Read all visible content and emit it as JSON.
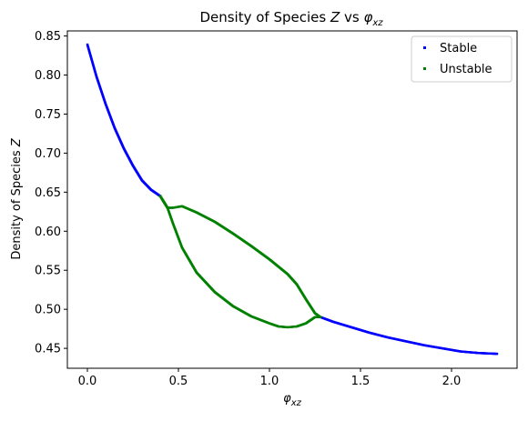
{
  "chart_data": {
    "type": "scatter",
    "title": "Density of Species Z vs φxz",
    "title_parts": {
      "prefix": "Density of Species ",
      "z": "Z",
      "middle": " vs ",
      "phi": "φ",
      "sub": "xz"
    },
    "xlabel_parts": {
      "phi": "φ",
      "sub": "xz"
    },
    "ylabel": "Density of Species Z",
    "ylabel_parts": {
      "prefix": "Density of Species ",
      "z": "Z"
    },
    "xlim": [
      -0.11,
      2.36
    ],
    "ylim": [
      0.4245,
      0.8565
    ],
    "xticks": [
      "0.0",
      "0.5",
      "1.0",
      "1.5",
      "2.0"
    ],
    "xtick_values": [
      0.0,
      0.5,
      1.0,
      1.5,
      2.0
    ],
    "yticks": [
      "0.45",
      "0.50",
      "0.55",
      "0.60",
      "0.65",
      "0.70",
      "0.75",
      "0.80",
      "0.85"
    ],
    "ytick_values": [
      0.45,
      0.5,
      0.55,
      0.6,
      0.65,
      0.7,
      0.75,
      0.8,
      0.85
    ],
    "grid": false,
    "legend_position": "top-right",
    "series": [
      {
        "name": "Stable",
        "color": "#0000ff",
        "segments": [
          {
            "x": [
              0.0,
              0.05,
              0.1,
              0.15,
              0.2,
              0.25,
              0.3,
              0.35,
              0.4
            ],
            "y": [
              0.839,
              0.798,
              0.763,
              0.732,
              0.706,
              0.684,
              0.665,
              0.653,
              0.645
            ]
          },
          {
            "x": [
              1.28,
              1.35,
              1.45,
              1.55,
              1.65,
              1.75,
              1.85,
              1.95,
              2.05,
              2.15,
              2.25
            ],
            "y": [
              0.49,
              0.484,
              0.477,
              0.47,
              0.464,
              0.459,
              0.454,
              0.45,
              0.446,
              0.444,
              0.443
            ]
          }
        ]
      },
      {
        "name": "Unstable",
        "color": "#008000",
        "segments": [
          {
            "x": [
              0.4,
              0.44,
              0.47,
              0.52,
              0.6,
              0.7,
              0.8,
              0.9,
              1.0,
              1.1,
              1.15,
              1.2,
              1.25,
              1.28
            ],
            "y": [
              0.645,
              0.63,
              0.63,
              0.632,
              0.624,
              0.612,
              0.597,
              0.581,
              0.564,
              0.545,
              0.532,
              0.513,
              0.495,
              0.49
            ]
          },
          {
            "x": [
              0.4,
              0.44,
              0.47,
              0.52,
              0.6,
              0.7,
              0.8,
              0.9,
              1.0,
              1.05,
              1.1,
              1.15,
              1.2,
              1.25,
              1.28
            ],
            "y": [
              0.645,
              0.63,
              0.61,
              0.579,
              0.547,
              0.522,
              0.504,
              0.491,
              0.482,
              0.478,
              0.477,
              0.478,
              0.482,
              0.49,
              0.49
            ]
          }
        ]
      }
    ]
  }
}
